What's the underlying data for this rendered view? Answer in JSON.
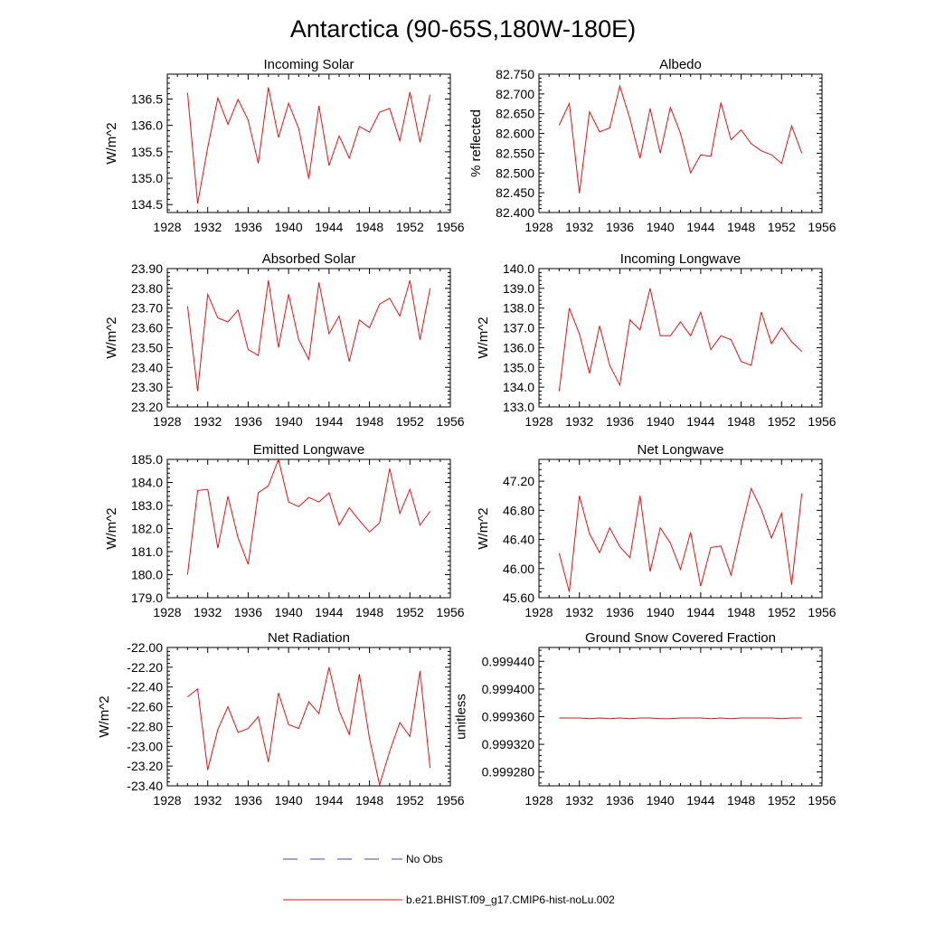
{
  "figure": {
    "title": "Antarctica (90-65S,180W-180E)",
    "legend": [
      {
        "label": "No Obs",
        "color": "#4a4aa8",
        "style": "dashed"
      },
      {
        "label": "b.e21.BHIST.f09_g17.CMIP6-hist-noLu.002",
        "color": "#e01414",
        "style": "solid"
      }
    ]
  },
  "chart_data": [
    {
      "type": "line",
      "title": "Incoming Solar",
      "ylabel": "W/m^2",
      "xlim": [
        1928,
        1956
      ],
      "xticks": [
        "1928",
        "1932",
        "1936",
        "1940",
        "1944",
        "1948",
        "1952",
        "1956"
      ],
      "ylim": [
        134.35,
        136.97
      ],
      "yticks": [
        "134.5",
        "135.0",
        "135.5",
        "136.0",
        "136.5"
      ],
      "x": [
        1930,
        1931,
        1932,
        1933,
        1934,
        1935,
        1936,
        1937,
        1938,
        1939,
        1940,
        1941,
        1942,
        1943,
        1944,
        1945,
        1946,
        1947,
        1948,
        1949,
        1950,
        1951,
        1952,
        1953,
        1954
      ],
      "series": [
        {
          "name": "b.e21.BHIST.f09_g17.CMIP6-hist-noLu.002",
          "color": "#e01414",
          "values": [
            136.62,
            134.52,
            135.58,
            136.52,
            136.02,
            136.49,
            136.1,
            135.28,
            136.72,
            135.77,
            136.42,
            135.94,
            134.99,
            136.37,
            135.24,
            135.8,
            135.38,
            135.98,
            135.87,
            136.25,
            136.32,
            135.71,
            136.63,
            135.68,
            136.58
          ]
        }
      ]
    },
    {
      "type": "line",
      "title": "Albedo",
      "ylabel": "% reflected",
      "xlim": [
        1928,
        1956
      ],
      "xticks": [
        "1928",
        "1932",
        "1936",
        "1940",
        "1944",
        "1948",
        "1952",
        "1956"
      ],
      "ylim": [
        82.4,
        82.75
      ],
      "yticks": [
        "82.400",
        "82.450",
        "82.500",
        "82.550",
        "82.600",
        "82.650",
        "82.700",
        "82.750"
      ],
      "x": [
        1930,
        1931,
        1932,
        1933,
        1934,
        1935,
        1936,
        1937,
        1938,
        1939,
        1940,
        1941,
        1942,
        1943,
        1944,
        1945,
        1946,
        1947,
        1948,
        1949,
        1950,
        1951,
        1952,
        1953,
        1954
      ],
      "series": [
        {
          "name": "b.e21.BHIST.f09_g17.CMIP6-hist-noLu.002",
          "color": "#e01414",
          "values": [
            82.621,
            82.676,
            82.449,
            82.655,
            82.604,
            82.614,
            82.72,
            82.637,
            82.537,
            82.663,
            82.55,
            82.666,
            82.6,
            82.5,
            82.546,
            82.542,
            82.678,
            82.584,
            82.609,
            82.574,
            82.556,
            82.546,
            82.524,
            82.619,
            82.55
          ]
        }
      ]
    },
    {
      "type": "line",
      "title": "Absorbed Solar",
      "ylabel": "W/m^2",
      "xlim": [
        1928,
        1956
      ],
      "xticks": [
        "1928",
        "1932",
        "1936",
        "1940",
        "1944",
        "1948",
        "1952",
        "1956"
      ],
      "ylim": [
        23.2,
        23.9
      ],
      "yticks": [
        "23.20",
        "23.30",
        "23.40",
        "23.50",
        "23.60",
        "23.70",
        "23.80",
        "23.90"
      ],
      "x": [
        1930,
        1931,
        1932,
        1933,
        1934,
        1935,
        1936,
        1937,
        1938,
        1939,
        1940,
        1941,
        1942,
        1943,
        1944,
        1945,
        1946,
        1947,
        1948,
        1949,
        1950,
        1951,
        1952,
        1953,
        1954
      ],
      "series": [
        {
          "name": "b.e21.BHIST.f09_g17.CMIP6-hist-noLu.002",
          "color": "#e01414",
          "values": [
            23.71,
            23.28,
            23.77,
            23.65,
            23.63,
            23.69,
            23.49,
            23.46,
            23.84,
            23.5,
            23.77,
            23.54,
            23.44,
            23.83,
            23.57,
            23.66,
            23.43,
            23.64,
            23.6,
            23.72,
            23.75,
            23.66,
            23.84,
            23.54,
            23.8
          ]
        }
      ]
    },
    {
      "type": "line",
      "title": "Incoming Longwave",
      "ylabel": "W/m^2",
      "xlim": [
        1928,
        1956
      ],
      "xticks": [
        "1928",
        "1932",
        "1936",
        "1940",
        "1944",
        "1948",
        "1952",
        "1956"
      ],
      "ylim": [
        133,
        140
      ],
      "yticks": [
        "133.0",
        "134.0",
        "135.0",
        "136.0",
        "137.0",
        "138.0",
        "139.0",
        "140.0"
      ],
      "x": [
        1930,
        1931,
        1932,
        1933,
        1934,
        1935,
        1936,
        1937,
        1938,
        1939,
        1940,
        1941,
        1942,
        1943,
        1944,
        1945,
        1946,
        1947,
        1948,
        1949,
        1950,
        1951,
        1952,
        1953,
        1954
      ],
      "series": [
        {
          "name": "b.e21.BHIST.f09_g17.CMIP6-hist-noLu.002",
          "color": "#e01414",
          "values": [
            133.8,
            138.0,
            136.7,
            134.7,
            137.1,
            135.1,
            134.1,
            137.4,
            136.9,
            139.0,
            136.6,
            136.6,
            137.3,
            136.6,
            137.8,
            135.9,
            136.6,
            136.4,
            135.3,
            135.1,
            137.8,
            136.2,
            137.0,
            136.3,
            135.8
          ]
        }
      ]
    },
    {
      "type": "line",
      "title": "Emitted Longwave",
      "ylabel": "W/m^2",
      "xlim": [
        1928,
        1956
      ],
      "xticks": [
        "1928",
        "1932",
        "1936",
        "1940",
        "1944",
        "1948",
        "1952",
        "1956"
      ],
      "ylim": [
        179,
        185
      ],
      "yticks": [
        "179.0",
        "180.0",
        "181.0",
        "182.0",
        "183.0",
        "184.0",
        "185.0"
      ],
      "x": [
        1930,
        1931,
        1932,
        1933,
        1934,
        1935,
        1936,
        1937,
        1938,
        1939,
        1940,
        1941,
        1942,
        1943,
        1944,
        1945,
        1946,
        1947,
        1948,
        1949,
        1950,
        1951,
        1952,
        1953,
        1954
      ],
      "series": [
        {
          "name": "b.e21.BHIST.f09_g17.CMIP6-hist-noLu.002",
          "color": "#e01414",
          "values": [
            180.0,
            183.65,
            183.7,
            181.15,
            183.4,
            181.6,
            180.45,
            183.55,
            183.85,
            185.0,
            183.15,
            182.95,
            183.35,
            183.15,
            183.55,
            182.15,
            182.9,
            182.35,
            181.85,
            182.25,
            184.6,
            182.65,
            183.7,
            182.15,
            182.75
          ]
        }
      ]
    },
    {
      "type": "line",
      "title": "Net Longwave",
      "ylabel": "W/m^2",
      "xlim": [
        1928,
        1956
      ],
      "xticks": [
        "1928",
        "1932",
        "1936",
        "1940",
        "1944",
        "1948",
        "1952",
        "1956"
      ],
      "ylim": [
        45.6,
        47.5
      ],
      "yticks": [
        "45.60",
        "46.00",
        "46.40",
        "46.80",
        "47.20"
      ],
      "x": [
        1930,
        1931,
        1932,
        1933,
        1934,
        1935,
        1936,
        1937,
        1938,
        1939,
        1940,
        1941,
        1942,
        1943,
        1944,
        1945,
        1946,
        1947,
        1948,
        1949,
        1950,
        1951,
        1952,
        1953,
        1954
      ],
      "series": [
        {
          "name": "b.e21.BHIST.f09_g17.CMIP6-hist-noLu.002",
          "color": "#e01414",
          "values": [
            46.21,
            45.68,
            47.0,
            46.48,
            46.22,
            46.56,
            46.3,
            46.15,
            47.0,
            45.96,
            46.56,
            46.35,
            45.99,
            46.5,
            45.76,
            46.29,
            46.31,
            45.91,
            46.53,
            47.1,
            46.81,
            46.42,
            46.76,
            45.78,
            47.03
          ]
        }
      ]
    },
    {
      "type": "line",
      "title": "Net Radiation",
      "ylabel": "W/m^2",
      "xlim": [
        1928,
        1956
      ],
      "xticks": [
        "1928",
        "1932",
        "1936",
        "1940",
        "1944",
        "1948",
        "1952",
        "1956"
      ],
      "ylim": [
        -23.4,
        -22.0
      ],
      "yticks": [
        "-23.40",
        "-23.20",
        "-23.00",
        "-22.80",
        "-22.60",
        "-22.40",
        "-22.20",
        "-22.00"
      ],
      "x": [
        1930,
        1931,
        1932,
        1933,
        1934,
        1935,
        1936,
        1937,
        1938,
        1939,
        1940,
        1941,
        1942,
        1943,
        1944,
        1945,
        1946,
        1947,
        1948,
        1949,
        1950,
        1951,
        1952,
        1953,
        1954
      ],
      "series": [
        {
          "name": "b.e21.BHIST.f09_g17.CMIP6-hist-noLu.002",
          "color": "#e01414",
          "values": [
            -22.5,
            -22.42,
            -23.24,
            -22.83,
            -22.6,
            -22.86,
            -22.82,
            -22.7,
            -23.16,
            -22.46,
            -22.78,
            -22.82,
            -22.55,
            -22.67,
            -22.2,
            -22.64,
            -22.88,
            -22.27,
            -22.92,
            -23.39,
            -23.05,
            -22.76,
            -22.9,
            -22.24,
            -23.22
          ]
        }
      ]
    },
    {
      "type": "line",
      "title": "Ground Snow Covered Fraction",
      "ylabel": "unitless",
      "xlim": [
        1928,
        1956
      ],
      "xticks": [
        "1928",
        "1932",
        "1936",
        "1940",
        "1944",
        "1948",
        "1952",
        "1956"
      ],
      "ylim": [
        0.99926,
        0.99946
      ],
      "yticks": [
        "0.999280",
        "0.999320",
        "0.999360",
        "0.999400",
        "0.999440"
      ],
      "x": [
        1930,
        1931,
        1932,
        1933,
        1934,
        1935,
        1936,
        1937,
        1938,
        1939,
        1940,
        1941,
        1942,
        1943,
        1944,
        1945,
        1946,
        1947,
        1948,
        1949,
        1950,
        1951,
        1952,
        1953,
        1954
      ],
      "series": [
        {
          "name": "b.e21.BHIST.f09_g17.CMIP6-hist-noLu.002",
          "color": "#e01414",
          "values": [
            0.999358,
            0.999358,
            0.999358,
            0.999357,
            0.999358,
            0.999357,
            0.999358,
            0.999357,
            0.999358,
            0.999358,
            0.999357,
            0.999357,
            0.999358,
            0.999358,
            0.999358,
            0.999357,
            0.999358,
            0.999357,
            0.999358,
            0.999358,
            0.999358,
            0.999358,
            0.999357,
            0.999358,
            0.999358
          ]
        }
      ]
    }
  ]
}
